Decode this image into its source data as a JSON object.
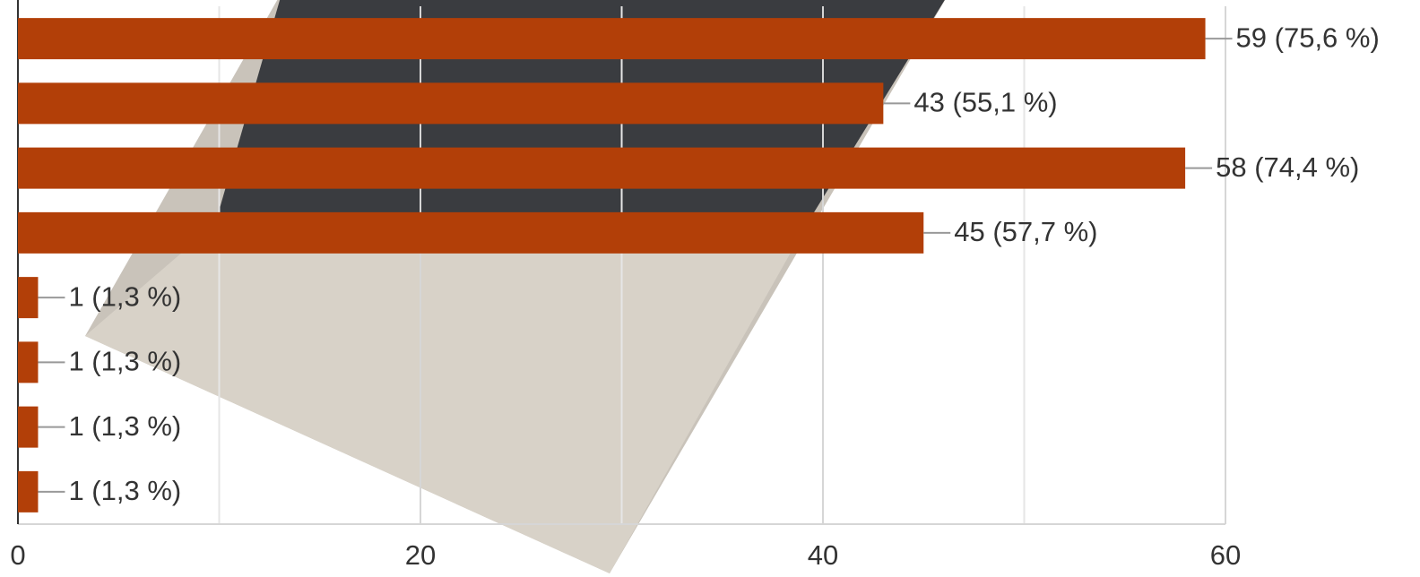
{
  "chart_data": {
    "type": "bar",
    "orientation": "horizontal",
    "categories": [
      null,
      null,
      null,
      null,
      null,
      null,
      null,
      null
    ],
    "values": [
      59,
      43,
      58,
      45,
      1,
      1,
      1,
      1
    ],
    "value_labels": [
      "59 (75,6 %)",
      "43 (55,1 %)",
      "58 (74,4 %)",
      "45 (57,7 %)",
      "1 (1,3 %)",
      "1 (1,3 %)",
      "1 (1,3 %)",
      "1 (1,3 %)"
    ],
    "color": "#b23f08",
    "xlim": [
      0,
      60
    ],
    "xticks": [
      0,
      20,
      40,
      60
    ],
    "xminorticks": [
      10,
      30,
      50
    ],
    "grid": true
  }
}
